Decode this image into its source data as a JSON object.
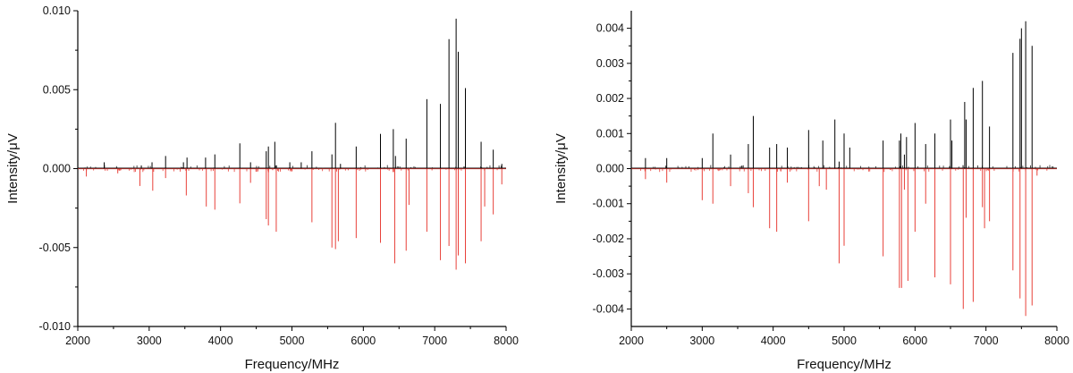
{
  "chart_data": [
    {
      "type": "line",
      "xlabel": "Frequency/MHz",
      "ylabel": "Intensity/μV",
      "xlim": [
        2000,
        8000
      ],
      "ylim": [
        -0.01,
        0.01
      ],
      "x_ticks": [
        "2000",
        "3000",
        "4000",
        "5000",
        "6000",
        "7000",
        "8000"
      ],
      "y_ticks": [
        "0.010",
        "0.005",
        "0.000",
        "-0.005",
        "-0.010"
      ],
      "grid": false,
      "series": [
        {
          "color": "#000000",
          "direction": "up",
          "lines": [
            [
              2370,
              0.0004
            ],
            [
              2890,
              0.0002
            ],
            [
              3040,
              0.0004
            ],
            [
              3230,
              0.0008
            ],
            [
              3480,
              0.0004
            ],
            [
              3530,
              0.0007
            ],
            [
              3790,
              0.0007
            ],
            [
              3920,
              0.0009
            ],
            [
              4270,
              0.0016
            ],
            [
              4420,
              0.0004
            ],
            [
              4640,
              0.0011
            ],
            [
              4670,
              0.0014
            ],
            [
              4760,
              0.0017
            ],
            [
              4970,
              0.0004
            ],
            [
              5130,
              0.0004
            ],
            [
              5280,
              0.0011
            ],
            [
              5560,
              0.0009
            ],
            [
              5610,
              0.0029
            ],
            [
              5680,
              0.0003
            ],
            [
              5900,
              0.0014
            ],
            [
              6240,
              0.0022
            ],
            [
              6420,
              0.0025
            ],
            [
              6450,
              0.0008
            ],
            [
              6600,
              0.0019
            ],
            [
              6890,
              0.0044
            ],
            [
              7080,
              0.0041
            ],
            [
              7200,
              0.0082
            ],
            [
              7300,
              0.0095
            ],
            [
              7330,
              0.0074
            ],
            [
              7430,
              0.0051
            ],
            [
              7650,
              0.0017
            ],
            [
              7820,
              0.0012
            ],
            [
              7940,
              0.0003
            ]
          ]
        },
        {
          "color": "#e8413a",
          "direction": "down",
          "lines": [
            [
              2120,
              -0.0005
            ],
            [
              2560,
              -0.0003
            ],
            [
              2870,
              -0.0011
            ],
            [
              3050,
              -0.0014
            ],
            [
              3230,
              -0.0006
            ],
            [
              3520,
              -0.0017
            ],
            [
              3800,
              -0.0024
            ],
            [
              3920,
              -0.0026
            ],
            [
              4270,
              -0.0022
            ],
            [
              4420,
              -0.0009
            ],
            [
              4640,
              -0.0032
            ],
            [
              4670,
              -0.0036
            ],
            [
              4780,
              -0.004
            ],
            [
              5280,
              -0.0034
            ],
            [
              5560,
              -0.005
            ],
            [
              5610,
              -0.0051
            ],
            [
              5650,
              -0.0046
            ],
            [
              5900,
              -0.0044
            ],
            [
              6240,
              -0.0047
            ],
            [
              6440,
              -0.006
            ],
            [
              6600,
              -0.0052
            ],
            [
              6640,
              -0.0023
            ],
            [
              6890,
              -0.004
            ],
            [
              7080,
              -0.0058
            ],
            [
              7200,
              -0.0049
            ],
            [
              7300,
              -0.0064
            ],
            [
              7330,
              -0.0055
            ],
            [
              7430,
              -0.006
            ],
            [
              7650,
              -0.0046
            ],
            [
              7700,
              -0.0024
            ],
            [
              7820,
              -0.0029
            ],
            [
              7940,
              -0.001
            ]
          ]
        }
      ]
    },
    {
      "type": "line",
      "xlabel": "Frequency/MHz",
      "ylabel": "Intensity/μV",
      "xlim": [
        2000,
        8000
      ],
      "ylim": [
        -0.0045,
        0.0045
      ],
      "x_ticks": [
        "2000",
        "3000",
        "4000",
        "5000",
        "6000",
        "7000",
        "8000"
      ],
      "y_ticks": [
        "0.004",
        "0.003",
        "0.002",
        "0.001",
        "0.000",
        "-0.001",
        "-0.002",
        "-0.003",
        "-0.004"
      ],
      "grid": false,
      "series": [
        {
          "color": "#000000",
          "direction": "up",
          "lines": [
            [
              2200,
              0.0003
            ],
            [
              2500,
              0.0003
            ],
            [
              3000,
              0.0003
            ],
            [
              3150,
              0.001
            ],
            [
              3400,
              0.0004
            ],
            [
              3650,
              0.0007
            ],
            [
              3720,
              0.0015
            ],
            [
              3950,
              0.0006
            ],
            [
              4050,
              0.0007
            ],
            [
              4200,
              0.0006
            ],
            [
              4500,
              0.0011
            ],
            [
              4700,
              0.0008
            ],
            [
              4870,
              0.0014
            ],
            [
              4930,
              0.0002
            ],
            [
              5000,
              0.001
            ],
            [
              5080,
              0.0006
            ],
            [
              5550,
              0.0008
            ],
            [
              5780,
              0.0008
            ],
            [
              5800,
              0.001
            ],
            [
              5850,
              0.0004
            ],
            [
              5880,
              0.0009
            ],
            [
              6000,
              0.0013
            ],
            [
              6150,
              0.0007
            ],
            [
              6280,
              0.001
            ],
            [
              6500,
              0.0014
            ],
            [
              6520,
              0.0008
            ],
            [
              6700,
              0.0019
            ],
            [
              6720,
              0.0014
            ],
            [
              6820,
              0.0023
            ],
            [
              6950,
              0.0025
            ],
            [
              7050,
              0.0012
            ],
            [
              7380,
              0.0033
            ],
            [
              7480,
              0.0037
            ],
            [
              7500,
              0.004
            ],
            [
              7560,
              0.0042
            ],
            [
              7650,
              0.0035
            ]
          ]
        },
        {
          "color": "#e8413a",
          "direction": "down",
          "lines": [
            [
              2200,
              -0.0003
            ],
            [
              2500,
              -0.0004
            ],
            [
              3000,
              -0.0009
            ],
            [
              3150,
              -0.001
            ],
            [
              3400,
              -0.0005
            ],
            [
              3650,
              -0.0007
            ],
            [
              3720,
              -0.0011
            ],
            [
              3950,
              -0.0017
            ],
            [
              4050,
              -0.0018
            ],
            [
              4200,
              -0.0004
            ],
            [
              4500,
              -0.0015
            ],
            [
              4650,
              -0.0005
            ],
            [
              4750,
              -0.0006
            ],
            [
              4930,
              -0.0027
            ],
            [
              5000,
              -0.0022
            ],
            [
              5550,
              -0.0025
            ],
            [
              5780,
              -0.0034
            ],
            [
              5810,
              -0.0034
            ],
            [
              5850,
              -0.0006
            ],
            [
              5900,
              -0.0032
            ],
            [
              6000,
              -0.0018
            ],
            [
              6150,
              -0.001
            ],
            [
              6280,
              -0.0031
            ],
            [
              6500,
              -0.0033
            ],
            [
              6680,
              -0.004
            ],
            [
              6720,
              -0.0014
            ],
            [
              6820,
              -0.0038
            ],
            [
              6950,
              -0.0011
            ],
            [
              6980,
              -0.0017
            ],
            [
              7050,
              -0.0015
            ],
            [
              7380,
              -0.0029
            ],
            [
              7480,
              -0.0037
            ],
            [
              7560,
              -0.0042
            ],
            [
              7650,
              -0.0039
            ],
            [
              7720,
              -0.0002
            ]
          ]
        }
      ]
    }
  ]
}
